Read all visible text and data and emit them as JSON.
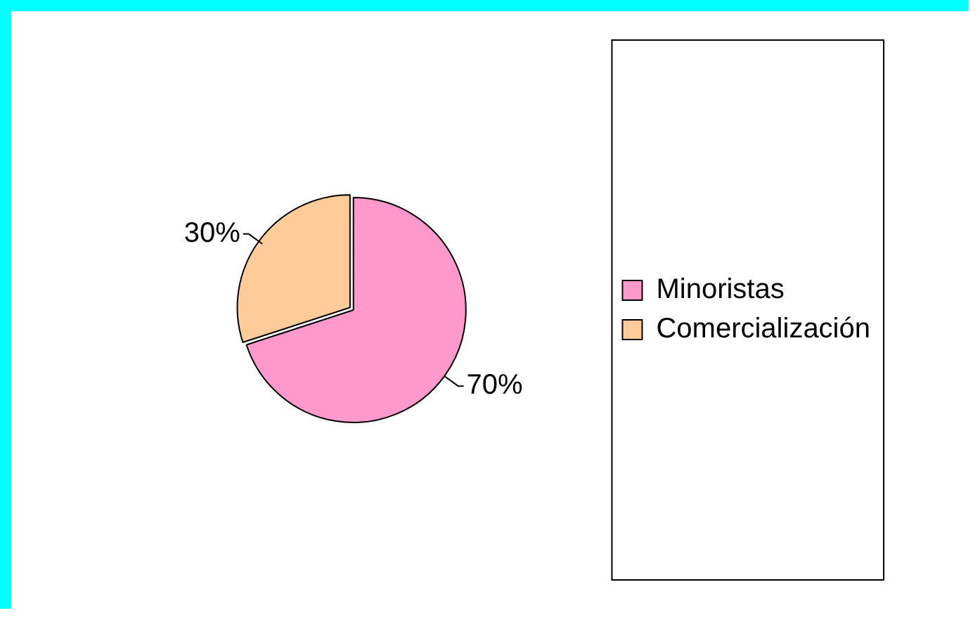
{
  "chart_data": {
    "type": "pie",
    "categories": [
      "Minoristas",
      "Comercialización"
    ],
    "values": [
      70,
      30
    ],
    "colors": [
      "#ff99cc",
      "#ffcc99"
    ],
    "value_labels": [
      "70%",
      "30%"
    ],
    "legend": "right"
  }
}
